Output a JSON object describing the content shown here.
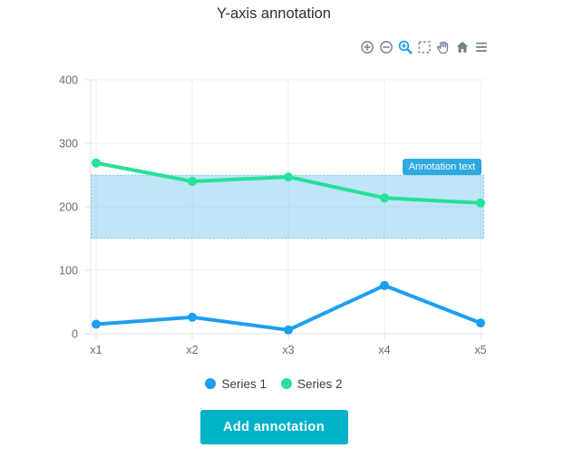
{
  "page": {
    "title": "Y-axis annotation"
  },
  "toolbar": {
    "icons": [
      "zoom-in",
      "zoom-out",
      "selection-zoom",
      "selection",
      "pan",
      "home",
      "menu"
    ],
    "active_icon": "selection-zoom",
    "icon_color": "#6e8192",
    "active_color": "#1e9ff0"
  },
  "chart_data": {
    "type": "line",
    "title": "Y-axis annotation",
    "categories": [
      "x1",
      "x2",
      "x3",
      "x4",
      "x5"
    ],
    "series": [
      {
        "name": "Series 1",
        "color": "#1e9ff0",
        "values": [
          15,
          26,
          6,
          76,
          17
        ]
      },
      {
        "name": "Series 2",
        "color": "#27e09a",
        "values": [
          269,
          240,
          247,
          214,
          206
        ]
      }
    ],
    "ylim": [
      0,
      400
    ],
    "yticks": [
      0,
      100,
      200,
      300,
      400
    ],
    "grid": true,
    "legend_position": "bottom",
    "stroke_width": 4,
    "marker_radius": 5,
    "annotation": {
      "type": "y-range",
      "y1": 150,
      "y2": 250,
      "label": "Annotation text",
      "label_bg": "#2fa9e1",
      "fill": "rgba(42,168,224,0.30)",
      "border": "rgba(42,168,224,0.50)"
    },
    "axis_label_color": "#646e75",
    "grid_color": "#efefef",
    "axis_line_color": "#dfe3e6"
  },
  "legend": {
    "items": [
      {
        "label": "Series 1",
        "color": "#1e9ff0"
      },
      {
        "label": "Series 2",
        "color": "#27e09a"
      }
    ]
  },
  "actions": {
    "add_annotation_label": "Add annotation",
    "button_bg": "#00b2c8"
  }
}
